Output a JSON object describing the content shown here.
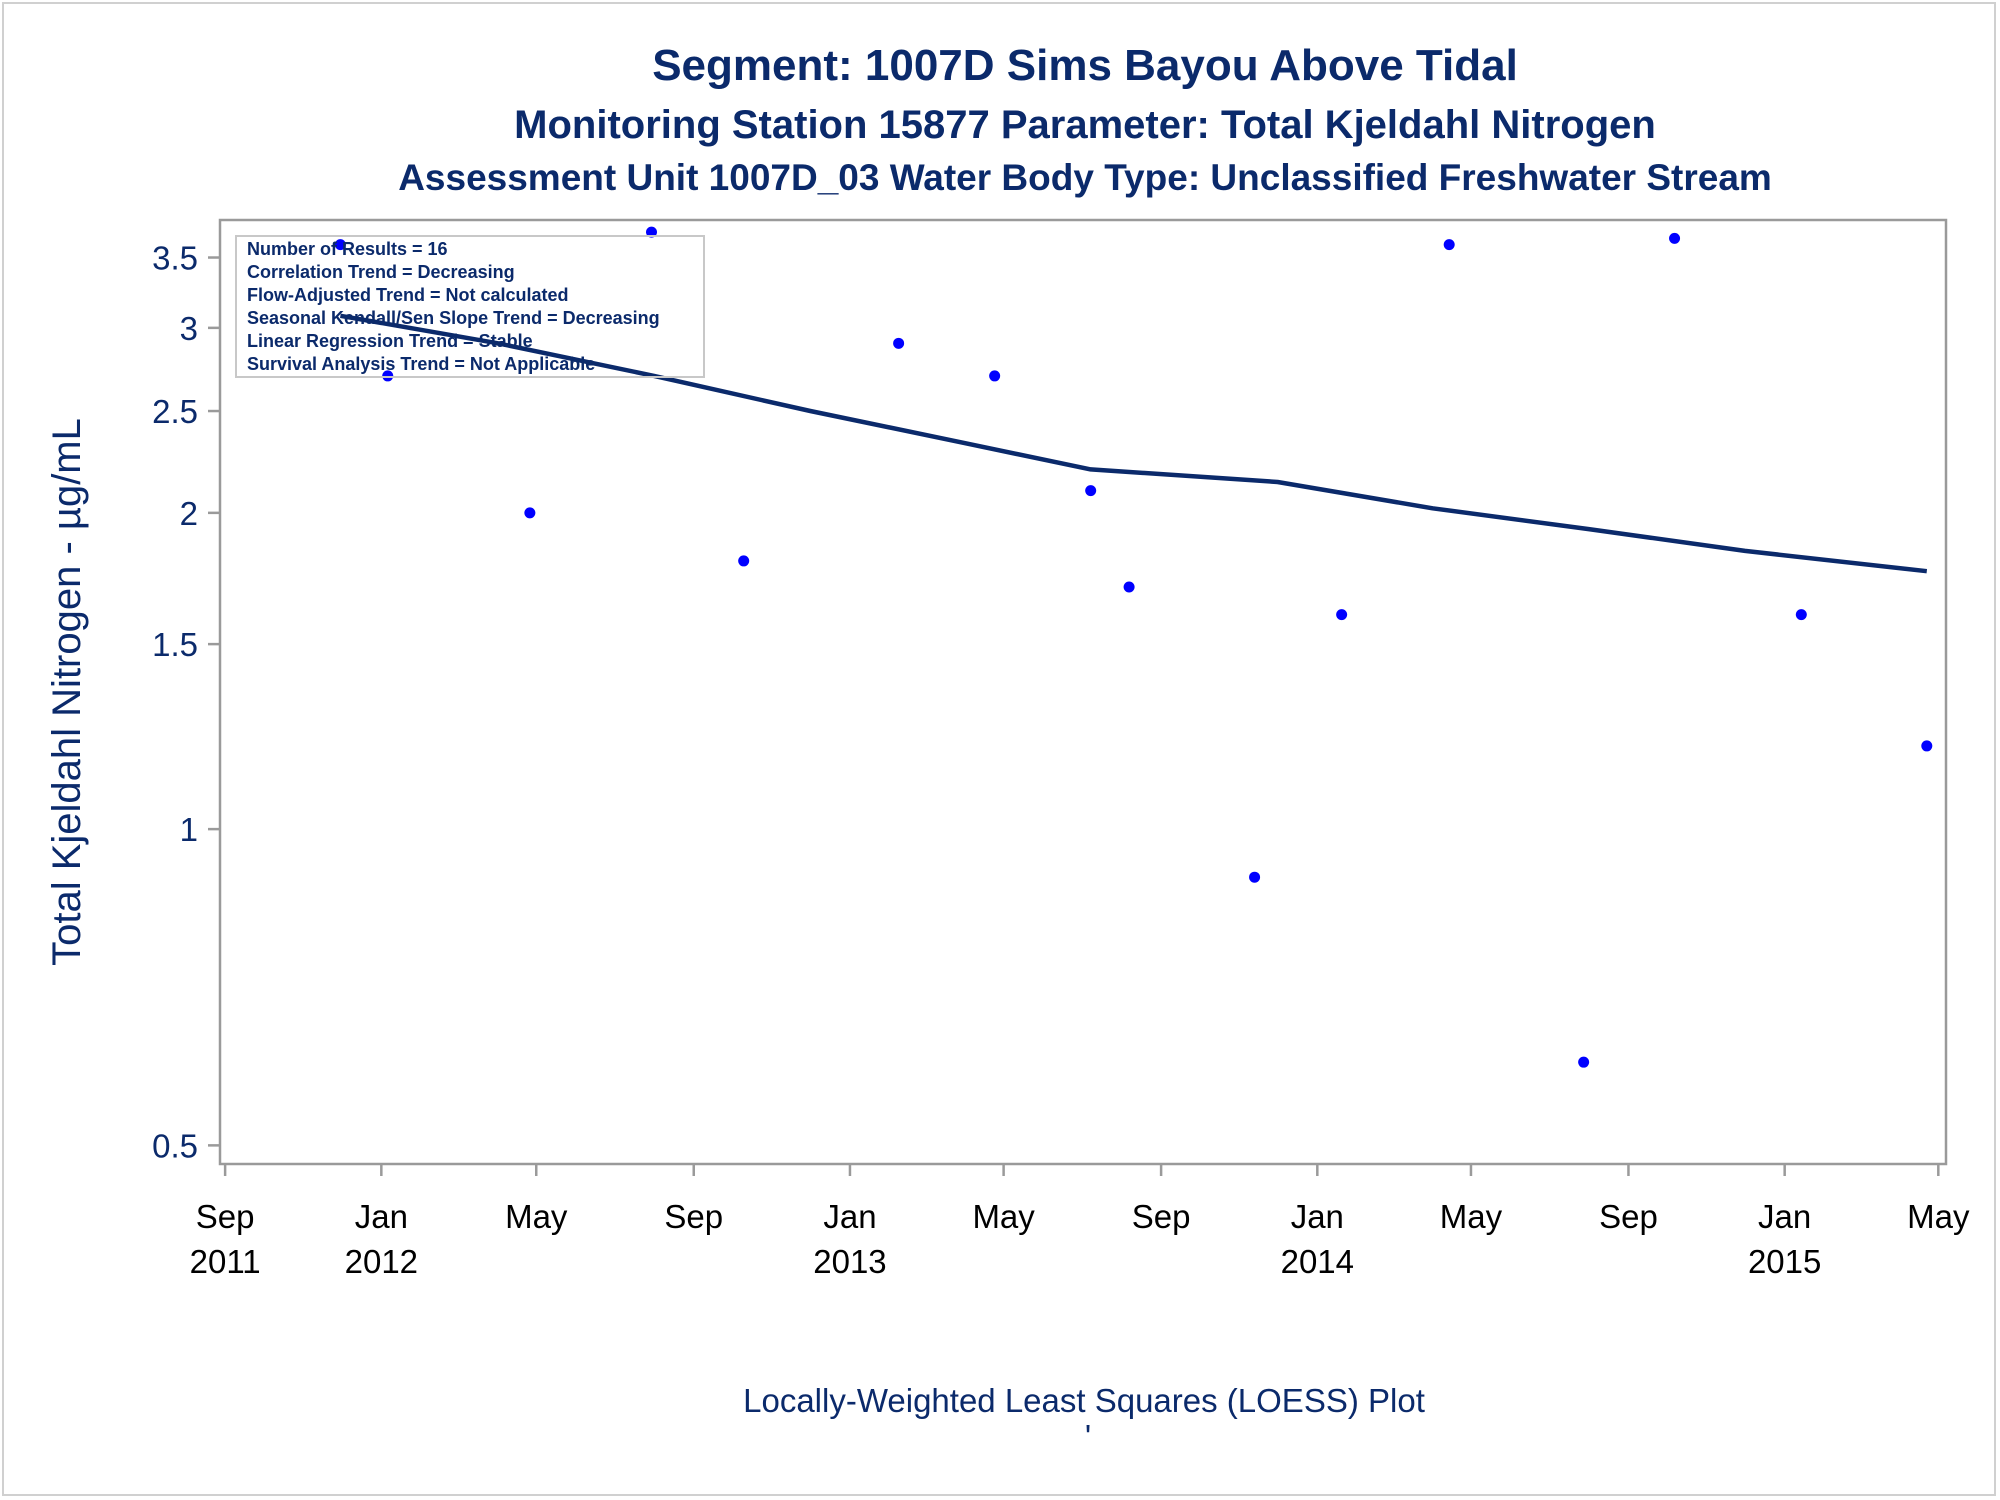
{
  "chart_data": {
    "type": "scatter",
    "title": "Segment: 1007D  Sims Bayou Above Tidal",
    "subtitle": "Monitoring Station 15877 Parameter: Total Kjeldahl Nitrogen",
    "subtitle2": "Assessment Unit 1007D_03   Water Body Type: Unclassified Freshwater Stream",
    "xlabel": "",
    "ylabel": "Total Kjeldahl Nitrogen -  µg/mL",
    "footnote": "Locally-Weighted Least Squares (LOESS) Plot",
    "footnote_mark": "'",
    "yscale": "log",
    "xlim": [
      "2011-08-28",
      "2015-05-07"
    ],
    "ylim": [
      0.48,
      3.8
    ],
    "yticks": [
      0.5,
      1,
      1.5,
      2,
      2.5,
      3,
      3.5
    ],
    "xticks": [
      {
        "date": "2011-09-01",
        "month": "Sep",
        "year": "2011"
      },
      {
        "date": "2012-01-01",
        "month": "Jan",
        "year": "2012"
      },
      {
        "date": "2012-05-01",
        "month": "May",
        "year": ""
      },
      {
        "date": "2012-09-01",
        "month": "Sep",
        "year": ""
      },
      {
        "date": "2013-01-01",
        "month": "Jan",
        "year": "2013"
      },
      {
        "date": "2013-05-01",
        "month": "May",
        "year": ""
      },
      {
        "date": "2013-09-01",
        "month": "Sep",
        "year": ""
      },
      {
        "date": "2014-01-01",
        "month": "Jan",
        "year": "2014"
      },
      {
        "date": "2014-05-01",
        "month": "May",
        "year": ""
      },
      {
        "date": "2014-09-01",
        "month": "Sep",
        "year": ""
      },
      {
        "date": "2015-01-01",
        "month": "Jan",
        "year": "2015"
      },
      {
        "date": "2015-05-01",
        "month": "May",
        "year": ""
      }
    ],
    "series": [
      {
        "points": [
          {
            "x": "2011-11-30",
            "y": 3.6
          },
          {
            "x": "2012-01-06",
            "y": 2.7
          },
          {
            "x": "2012-04-26",
            "y": 2.0
          },
          {
            "x": "2012-07-30",
            "y": 3.7
          },
          {
            "x": "2012-10-10",
            "y": 1.8
          },
          {
            "x": "2013-02-08",
            "y": 2.9
          },
          {
            "x": "2013-04-24",
            "y": 2.7
          },
          {
            "x": "2013-07-08",
            "y": 2.1
          },
          {
            "x": "2013-08-07",
            "y": 1.7
          },
          {
            "x": "2013-11-13",
            "y": 0.9
          },
          {
            "x": "2014-01-20",
            "y": 1.6
          },
          {
            "x": "2014-04-14",
            "y": 3.6
          },
          {
            "x": "2014-07-28",
            "y": 0.6
          },
          {
            "x": "2014-10-07",
            "y": 3.65
          },
          {
            "x": "2015-01-14",
            "y": 1.6
          },
          {
            "x": "2015-04-22",
            "y": 1.2
          }
        ]
      },
      {
        "type": "line",
        "points": [
          {
            "x": "2011-11-30",
            "y": 3.08
          },
          {
            "x": "2012-04-01",
            "y": 2.9
          },
          {
            "x": "2012-08-01",
            "y": 2.7
          },
          {
            "x": "2012-12-01",
            "y": 2.5
          },
          {
            "x": "2013-04-01",
            "y": 2.33
          },
          {
            "x": "2013-07-08",
            "y": 2.2
          },
          {
            "x": "2013-12-01",
            "y": 2.14
          },
          {
            "x": "2014-04-01",
            "y": 2.02
          },
          {
            "x": "2014-08-01",
            "y": 1.93
          },
          {
            "x": "2014-12-01",
            "y": 1.84
          },
          {
            "x": "2015-04-22",
            "y": 1.76
          }
        ]
      }
    ],
    "legend_box": [
      "Number of Results = 16",
      "Correlation Trend = Decreasing",
      "Flow-Adjusted Trend = Not calculated",
      "Seasonal Kendall/Sen Slope Trend = Decreasing",
      "Linear Regression Trend = Stable",
      "Survival Analysis Trend = Not Applicable"
    ],
    "grid": false,
    "colors": {
      "points": "#0000ff",
      "line": "#0b2a6b",
      "text": "#0b2a6b",
      "axis": "#9a9a9a"
    }
  }
}
